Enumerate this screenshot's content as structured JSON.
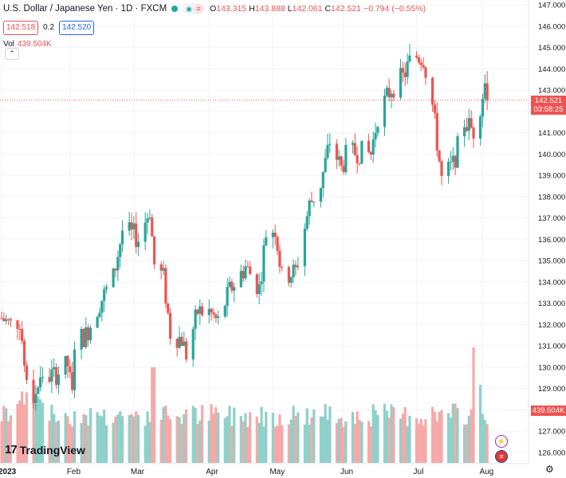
{
  "header": {
    "symbol_title": "U.S. Dollar / Japanese Yen · 1D · FXCM",
    "ohlc": {
      "o_label": "O",
      "o": "143.315",
      "h_label": "H",
      "h": "143.888",
      "l_label": "L",
      "l": "142.061",
      "c_label": "C",
      "c": "142.521",
      "change": "−0.794 (−0.55%)"
    },
    "bid": "142.518",
    "spread": "0.2",
    "ask": "142.520",
    "volume_label": "Vol",
    "volume_value": "439.504K",
    "collapse_glyph": "⌃"
  },
  "price_axis": {
    "labels": [
      "147.000",
      "146.000",
      "145.000",
      "144.000",
      "143.000",
      "141.000",
      "140.000",
      "139.000",
      "138.000",
      "137.000",
      "136.000",
      "135.000",
      "134.000",
      "133.000",
      "132.000",
      "131.000",
      "130.000",
      "129.000",
      "128.000",
      "127.000",
      "126.000"
    ],
    "current_price": "142.521",
    "countdown": "03:58:25",
    "volume_label": "439.504K"
  },
  "time_axis": {
    "labels": [
      "2023",
      "Feb",
      "Mar",
      "Apr",
      "May",
      "Jun",
      "Jul",
      "Aug"
    ]
  },
  "branding": {
    "logo_text": "TradingView",
    "logo_mark": "17"
  },
  "colors": {
    "up": "#26a69a",
    "down": "#ef5350",
    "up_vol": "#8ed1c9",
    "down_vol": "#f5a9a8",
    "grid": "#f0f3fa",
    "axis_text": "#131722"
  },
  "icons": {
    "lightning": "lightning-icon",
    "flag": "us-flag-icon",
    "settings": "gear-icon"
  },
  "chart_data": {
    "type": "candlestick",
    "symbol": "U.S. Dollar / Japanese Yen",
    "interval": "1D",
    "ylim": [
      125.8,
      147.3
    ],
    "x_ticks": [
      "2023",
      "Feb",
      "Mar",
      "Apr",
      "May",
      "Jun",
      "Jul",
      "Aug"
    ],
    "start_date": "2023-01-02",
    "daily_close_anchors": [
      [
        "2023-01-02",
        132.3
      ],
      [
        "2023-01-06",
        132.0
      ],
      [
        "2023-01-10",
        132.2
      ],
      [
        "2023-01-13",
        129.1
      ],
      [
        "2023-01-16",
        128.6
      ],
      [
        "2023-01-20",
        129.6
      ],
      [
        "2023-01-25",
        129.6
      ],
      [
        "2023-01-31",
        130.1
      ],
      [
        "2023-02-02",
        128.6
      ],
      [
        "2023-02-03",
        131.2
      ],
      [
        "2023-02-08",
        131.5
      ],
      [
        "2023-02-14",
        133.0
      ],
      [
        "2023-02-20",
        134.2
      ],
      [
        "2023-02-24",
        136.4
      ],
      [
        "2023-03-01",
        136.2
      ],
      [
        "2023-03-03",
        136.0
      ],
      [
        "2023-03-08",
        137.4
      ],
      [
        "2023-03-10",
        134.8
      ],
      [
        "2023-03-14",
        134.2
      ],
      [
        "2023-03-17",
        131.6
      ],
      [
        "2023-03-22",
        131.3
      ],
      [
        "2023-03-24",
        130.6
      ],
      [
        "2023-03-29",
        132.6
      ],
      [
        "2023-04-03",
        132.6
      ],
      [
        "2023-04-07",
        132.1
      ],
      [
        "2023-04-12",
        133.6
      ],
      [
        "2023-04-19",
        134.7
      ],
      [
        "2023-04-25",
        133.7
      ],
      [
        "2023-04-28",
        136.3
      ],
      [
        "2023-05-02",
        136.5
      ],
      [
        "2023-05-05",
        134.2
      ],
      [
        "2023-05-11",
        134.5
      ],
      [
        "2023-05-17",
        137.6
      ],
      [
        "2023-05-22",
        138.6
      ],
      [
        "2023-05-26",
        140.6
      ],
      [
        "2023-05-31",
        139.3
      ],
      [
        "2023-06-02",
        139.9
      ],
      [
        "2023-06-07",
        140.1
      ],
      [
        "2023-06-13",
        140.0
      ],
      [
        "2023-06-16",
        141.8
      ],
      [
        "2023-06-22",
        143.1
      ],
      [
        "2023-06-27",
        143.6
      ],
      [
        "2023-06-30",
        144.3
      ],
      [
        "2023-07-03",
        144.6
      ],
      [
        "2023-07-06",
        144.5
      ],
      [
        "2023-07-10",
        142.3
      ],
      [
        "2023-07-14",
        138.8
      ],
      [
        "2023-07-19",
        139.5
      ],
      [
        "2023-07-24",
        141.5
      ],
      [
        "2023-07-28",
        141.1
      ],
      [
        "2023-07-31",
        142.3
      ],
      [
        "2023-08-02",
        143.3
      ],
      [
        "2023-08-03",
        142.5
      ]
    ],
    "last_bar": {
      "open": 143.315,
      "high": 143.888,
      "low": 142.061,
      "close": 142.521,
      "volume": "439.504K"
    },
    "volume_peaks": [
      [
        "2023-03-09",
        "high"
      ],
      [
        "2023-07-28",
        "highest"
      ]
    ]
  }
}
